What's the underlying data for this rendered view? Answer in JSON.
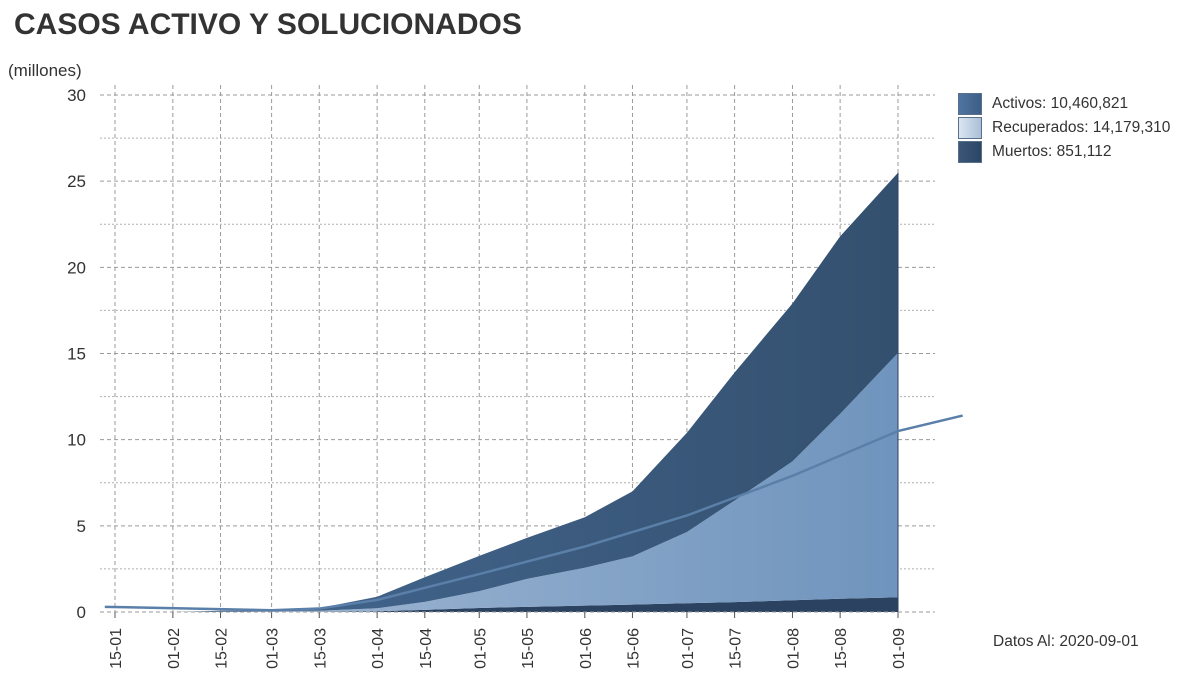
{
  "page": {
    "title": "CASOS ACTIVO Y SOLUCIONADOS",
    "unit": "(millones)",
    "note": "Datos Al: 2020-09-01"
  },
  "legend": [
    {
      "label": "Activos: 10,460,821",
      "color": "#3d5f86"
    },
    {
      "label": "Recuperados: 14,179,310",
      "color": "#aabfd8"
    },
    {
      "label": "Muertos: 851,112",
      "color": "#2c4666"
    }
  ],
  "colors": {
    "activos_area": "#34506f",
    "recuperados_light": "#a8bdd7",
    "recuperados_dark": "#6f94bd",
    "muertos_area": "#2b4260",
    "trend_line": "#5a7fa8",
    "grid": "#9a9a9a"
  },
  "chart_data": {
    "type": "area",
    "stacked": true,
    "ylim": [
      0,
      30
    ],
    "y_ticks": [
      0,
      5,
      10,
      15,
      20,
      25,
      30
    ],
    "x_tick_labels": [
      "15-01",
      "01-02",
      "15-02",
      "01-03",
      "15-03",
      "01-04",
      "15-04",
      "01-05",
      "15-05",
      "01-06",
      "15-06",
      "01-07",
      "15-07",
      "01-08",
      "15-08",
      "01-09"
    ],
    "x_tick_dates": [
      "2020-01-15",
      "2020-02-01",
      "2020-02-15",
      "2020-03-01",
      "2020-03-15",
      "2020-04-01",
      "2020-04-15",
      "2020-05-01",
      "2020-05-15",
      "2020-06-01",
      "2020-06-15",
      "2020-07-01",
      "2020-07-15",
      "2020-08-01",
      "2020-08-15",
      "2020-09-01"
    ],
    "dates": [
      "2020-01-15",
      "2020-02-01",
      "2020-02-15",
      "2020-03-01",
      "2020-03-15",
      "2020-04-01",
      "2020-04-15",
      "2020-05-01",
      "2020-05-15",
      "2020-06-01",
      "2020-06-15",
      "2020-07-01",
      "2020-07-15",
      "2020-08-01",
      "2020-08-15",
      "2020-09-01"
    ],
    "series": [
      {
        "name": "Muertos",
        "values": [
          0.0003,
          0.0003,
          0.0016,
          0.003,
          0.006,
          0.045,
          0.126,
          0.23,
          0.3,
          0.37,
          0.43,
          0.51,
          0.57,
          0.68,
          0.77,
          0.851
        ]
      },
      {
        "name": "Recuperados",
        "values": [
          0.0,
          0.0,
          0.01,
          0.045,
          0.07,
          0.17,
          0.46,
          0.98,
          1.62,
          2.2,
          2.8,
          4.13,
          5.9,
          8.06,
          10.73,
          14.18
        ]
      },
      {
        "name": "Activos",
        "values": [
          0.0,
          0.0,
          0.06,
          0.045,
          0.15,
          0.67,
          1.43,
          2.05,
          2.38,
          2.93,
          3.77,
          5.76,
          7.43,
          9.16,
          10.3,
          10.46
        ]
      }
    ],
    "trend_line": {
      "dates": [
        "2020-01-12",
        "2020-03-01",
        "2020-03-15",
        "2020-04-01",
        "2020-05-01",
        "2020-06-01",
        "2020-07-01",
        "2020-08-01",
        "2020-09-01",
        "2020-09-20"
      ],
      "values": [
        0.3,
        0.1,
        0.2,
        0.7,
        2.2,
        3.8,
        5.6,
        7.9,
        10.5,
        11.4
      ]
    }
  }
}
